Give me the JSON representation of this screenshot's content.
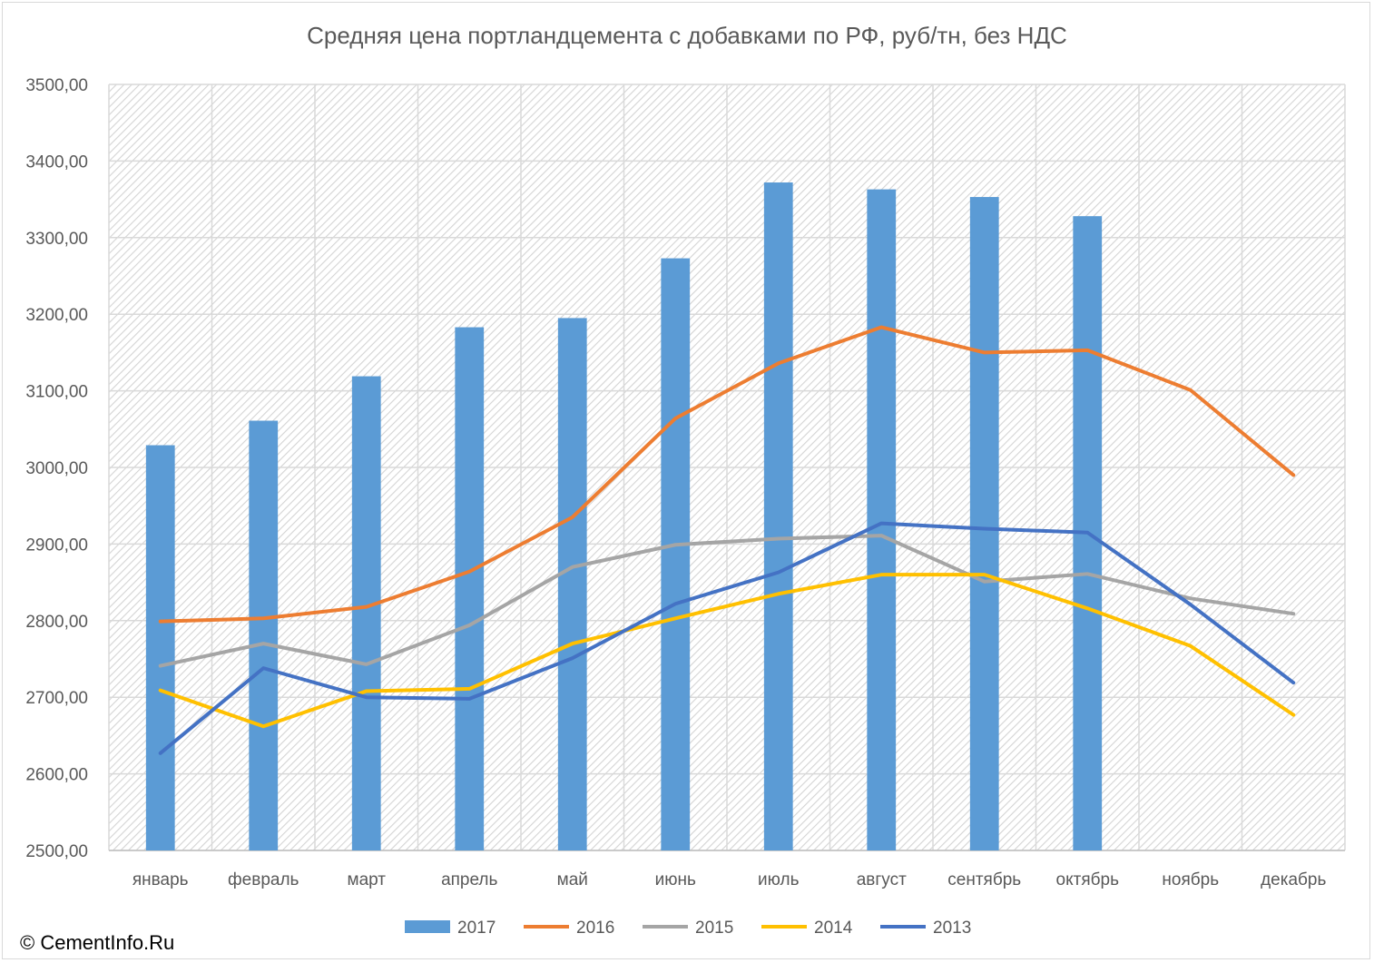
{
  "chart_data": {
    "type": "bar",
    "title": "Средняя цена портландцемента с добавками по РФ, руб/тн, без НДС",
    "categories": [
      "январь",
      "февраль",
      "март",
      "апрель",
      "май",
      "июнь",
      "июль",
      "август",
      "сентябрь",
      "октябрь",
      "ноябрь",
      "декабрь"
    ],
    "ylim": [
      2500,
      3500
    ],
    "ytick_step": 100,
    "ytick_labels": [
      "2500,00",
      "2600,00",
      "2700,00",
      "2800,00",
      "2900,00",
      "3000,00",
      "3100,00",
      "3200,00",
      "3300,00",
      "3400,00",
      "3500,00"
    ],
    "grid": true,
    "legend_position": "bottom",
    "series": [
      {
        "name": "2017",
        "kind": "bar",
        "color": "#5b9bd5",
        "values": [
          3029,
          3061,
          3119,
          3183,
          3195,
          3273,
          3372,
          3363,
          3353,
          3328,
          null,
          null
        ]
      },
      {
        "name": "2016",
        "kind": "line",
        "color": "#ed7d31",
        "values": [
          2799,
          2803,
          2818,
          2864,
          2935,
          3064,
          3136,
          3183,
          3150,
          3153,
          3101,
          2990
        ]
      },
      {
        "name": "2015",
        "kind": "line",
        "color": "#a5a5a5",
        "values": [
          2741,
          2770,
          2743,
          2794,
          2870,
          2899,
          2907,
          2911,
          2851,
          2861,
          2829,
          2809
        ]
      },
      {
        "name": "2014",
        "kind": "line",
        "color": "#ffc000",
        "values": [
          2709,
          2662,
          2708,
          2711,
          2770,
          2803,
          2835,
          2860,
          2860,
          2816,
          2767,
          2677
        ]
      },
      {
        "name": "2013",
        "kind": "line",
        "color": "#4472c4",
        "values": [
          2627,
          2738,
          2700,
          2698,
          2751,
          2822,
          2863,
          2927,
          2920,
          2915,
          2821,
          2719
        ]
      }
    ]
  },
  "footer": {
    "copyright": "© CementInfo.Ru"
  }
}
